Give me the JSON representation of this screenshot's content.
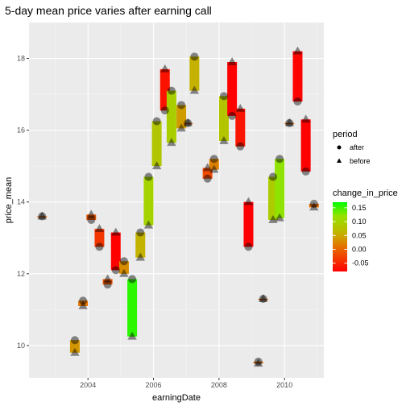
{
  "chart_data": {
    "type": "scatter",
    "title": "5-day mean price varies after earning call",
    "xlabel": "earningDate",
    "ylabel": "price_mean",
    "xlim": [
      2002.2,
      2011.2
    ],
    "ylim": [
      9.1,
      19.0
    ],
    "x_ticks": [
      {
        "value": 2004,
        "label": "2004"
      },
      {
        "value": 2006,
        "label": "2006"
      },
      {
        "value": 2008,
        "label": "2008"
      },
      {
        "value": 2010,
        "label": "2010"
      }
    ],
    "y_ticks": [
      {
        "value": 10,
        "label": "10"
      },
      {
        "value": 12,
        "label": "12"
      },
      {
        "value": 14,
        "label": "14"
      },
      {
        "value": 16,
        "label": "16"
      },
      {
        "value": 18,
        "label": "18"
      }
    ],
    "grid": true,
    "legend_period": {
      "title": "period",
      "entries": [
        {
          "label": "after",
          "shape": "circle"
        },
        {
          "label": "before",
          "shape": "triangle"
        }
      ]
    },
    "legend_color": {
      "title": "change_in_price",
      "ticks": [
        0.15,
        0.1,
        0.05,
        0.0,
        -0.05
      ],
      "tick_labels": [
        "0.15",
        "0.10",
        "0.05",
        "0.00",
        "-0.05"
      ],
      "min": -0.08,
      "max": 0.17,
      "low_color": "#ff0000",
      "high_color": "#00ff00"
    },
    "points": [
      {
        "date": 2002.6,
        "before": 13.6,
        "after": 13.6,
        "change": 0.0
      },
      {
        "date": 2003.6,
        "before": 9.8,
        "after": 10.15,
        "change": 0.036
      },
      {
        "date": 2003.85,
        "before": 11.1,
        "after": 11.25,
        "change": 0.013
      },
      {
        "date": 2004.1,
        "before": 13.65,
        "after": 13.5,
        "change": -0.011
      },
      {
        "date": 2004.35,
        "before": 13.25,
        "after": 12.75,
        "change": -0.038
      },
      {
        "date": 2004.6,
        "before": 11.85,
        "after": 11.7,
        "change": -0.013
      },
      {
        "date": 2004.85,
        "before": 13.15,
        "after": 12.1,
        "change": -0.08
      },
      {
        "date": 2005.1,
        "before": 12.0,
        "after": 12.35,
        "change": 0.029
      },
      {
        "date": 2005.35,
        "before": 10.25,
        "after": 11.85,
        "change": 0.156
      },
      {
        "date": 2005.6,
        "before": 12.45,
        "after": 13.15,
        "change": 0.056
      },
      {
        "date": 2005.85,
        "before": 13.35,
        "after": 14.7,
        "change": 0.101
      },
      {
        "date": 2006.1,
        "before": 15.0,
        "after": 16.25,
        "change": 0.083
      },
      {
        "date": 2006.35,
        "before": 17.7,
        "after": 16.55,
        "change": -0.065
      },
      {
        "date": 2006.55,
        "before": 15.65,
        "after": 17.1,
        "change": 0.093
      },
      {
        "date": 2006.85,
        "before": 16.05,
        "after": 16.7,
        "change": 0.04
      },
      {
        "date": 2007.05,
        "before": 16.2,
        "after": 16.2,
        "change": 0.0
      },
      {
        "date": 2007.25,
        "before": 17.1,
        "after": 18.05,
        "change": 0.055
      },
      {
        "date": 2007.65,
        "before": 14.95,
        "after": 14.65,
        "change": -0.02
      },
      {
        "date": 2007.85,
        "before": 14.9,
        "after": 15.2,
        "change": 0.02
      },
      {
        "date": 2008.15,
        "before": 15.7,
        "after": 16.95,
        "change": 0.08
      },
      {
        "date": 2008.4,
        "before": 17.9,
        "after": 16.4,
        "change": -0.084
      },
      {
        "date": 2008.65,
        "before": 16.6,
        "after": 15.55,
        "change": -0.063
      },
      {
        "date": 2008.9,
        "before": 14.0,
        "after": 12.75,
        "change": -0.09
      },
      {
        "date": 2009.2,
        "before": 9.5,
        "after": 9.55,
        "change": 0.005
      },
      {
        "date": 2009.35,
        "before": 11.3,
        "after": 11.3,
        "change": 0.0
      },
      {
        "date": 2009.65,
        "before": 13.5,
        "after": 14.7,
        "change": 0.089
      },
      {
        "date": 2009.85,
        "before": 13.55,
        "after": 15.2,
        "change": 0.122
      },
      {
        "date": 2010.15,
        "before": 16.2,
        "after": 16.2,
        "change": 0.0
      },
      {
        "date": 2010.4,
        "before": 18.2,
        "after": 16.8,
        "change": -0.077
      },
      {
        "date": 2010.65,
        "before": 16.3,
        "after": 14.85,
        "change": -0.089
      },
      {
        "date": 2010.9,
        "before": 13.85,
        "after": 13.95,
        "change": 0.007
      }
    ]
  }
}
